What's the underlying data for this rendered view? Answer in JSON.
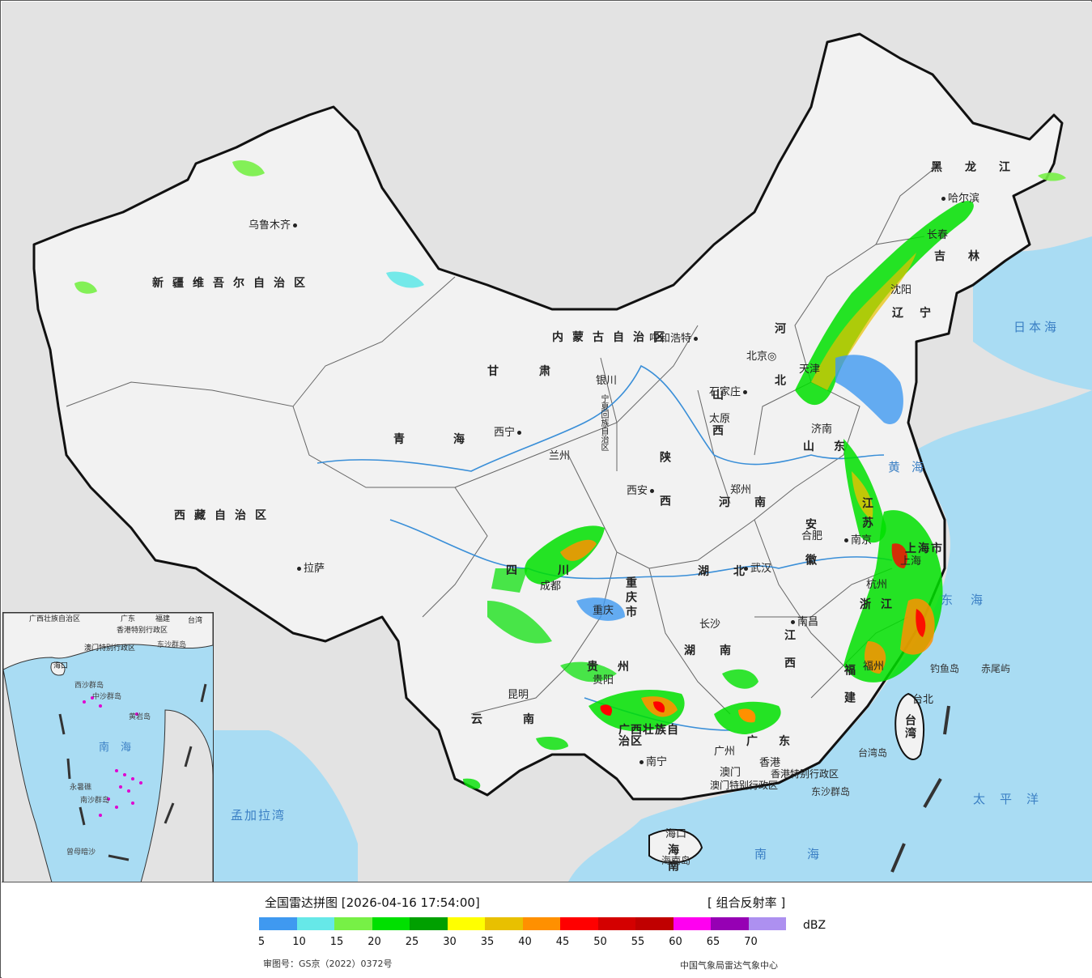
{
  "title": "全国雷达拼图 [2026-04-16 17:54:00]",
  "product": "[ 组合反射率 ]",
  "unit": "dBZ",
  "approval_no": "审图号：GS京（2022）0372号",
  "source": "中国气象局雷达气象中心",
  "legend": {
    "colors": [
      "#3f99f0",
      "#66e8e8",
      "#77f046",
      "#00e000",
      "#00a000",
      "#ffff00",
      "#e8c000",
      "#ff9000",
      "#ff0000",
      "#d40000",
      "#c00000",
      "#ff00f0",
      "#9600b4",
      "#ad90f0"
    ],
    "ticks": [
      "5",
      "10",
      "15",
      "20",
      "25",
      "30",
      "35",
      "40",
      "45",
      "50",
      "55",
      "60",
      "65",
      "70"
    ]
  },
  "colors": {
    "ocean": "#a9dcf3",
    "land": "#f2f2f2",
    "foreign": "#e3e3e3",
    "border": "#111111",
    "river": "#3a8fd8"
  },
  "provinces": [
    "新疆维吾尔自治区",
    "西藏自治区",
    "青海",
    "甘肃",
    "内蒙古自治区",
    "黑龙江",
    "吉林",
    "辽宁",
    "河北",
    "山西",
    "陕西",
    "河南",
    "山东",
    "四川",
    "重庆市",
    "湖北",
    "安徽",
    "江苏",
    "上海市",
    "浙江",
    "湖南",
    "江西",
    "贵州",
    "云南",
    "广西壮族自治区",
    "广东",
    "福建",
    "台湾",
    "海南",
    "宁夏回族自治区",
    "香港特别行政区",
    "澳门特别行政区"
  ],
  "cities": [
    "乌鲁木齐",
    "拉萨",
    "西宁",
    "兰州",
    "银川",
    "呼和浩特",
    "北京",
    "天津",
    "石家庄",
    "太原",
    "郑州",
    "西安",
    "济南",
    "合肥",
    "南京",
    "上海",
    "杭州",
    "武汉",
    "成都",
    "重庆",
    "长沙",
    "南昌",
    "福州",
    "贵阳",
    "昆明",
    "南宁",
    "广州",
    "香港",
    "澳门",
    "海口",
    "沈阳",
    "长春",
    "哈尔滨",
    "台北"
  ],
  "seas": [
    "日本海",
    "黄海",
    "东海",
    "太平洋",
    "南海",
    "孟加拉湾"
  ],
  "islands": [
    "钓鱼岛",
    "赤尾屿",
    "台湾岛",
    "东沙群岛",
    "海南岛"
  ],
  "inset_labels": [
    "广西壮族自治区",
    "广东",
    "福建",
    "台湾",
    "海口",
    "香港特别行政区",
    "澳门特别行政区",
    "东沙群岛",
    "西沙群岛",
    "中沙群岛",
    "黄岩岛",
    "南海",
    "永暑礁",
    "南沙群岛",
    "曾母暗沙"
  ]
}
